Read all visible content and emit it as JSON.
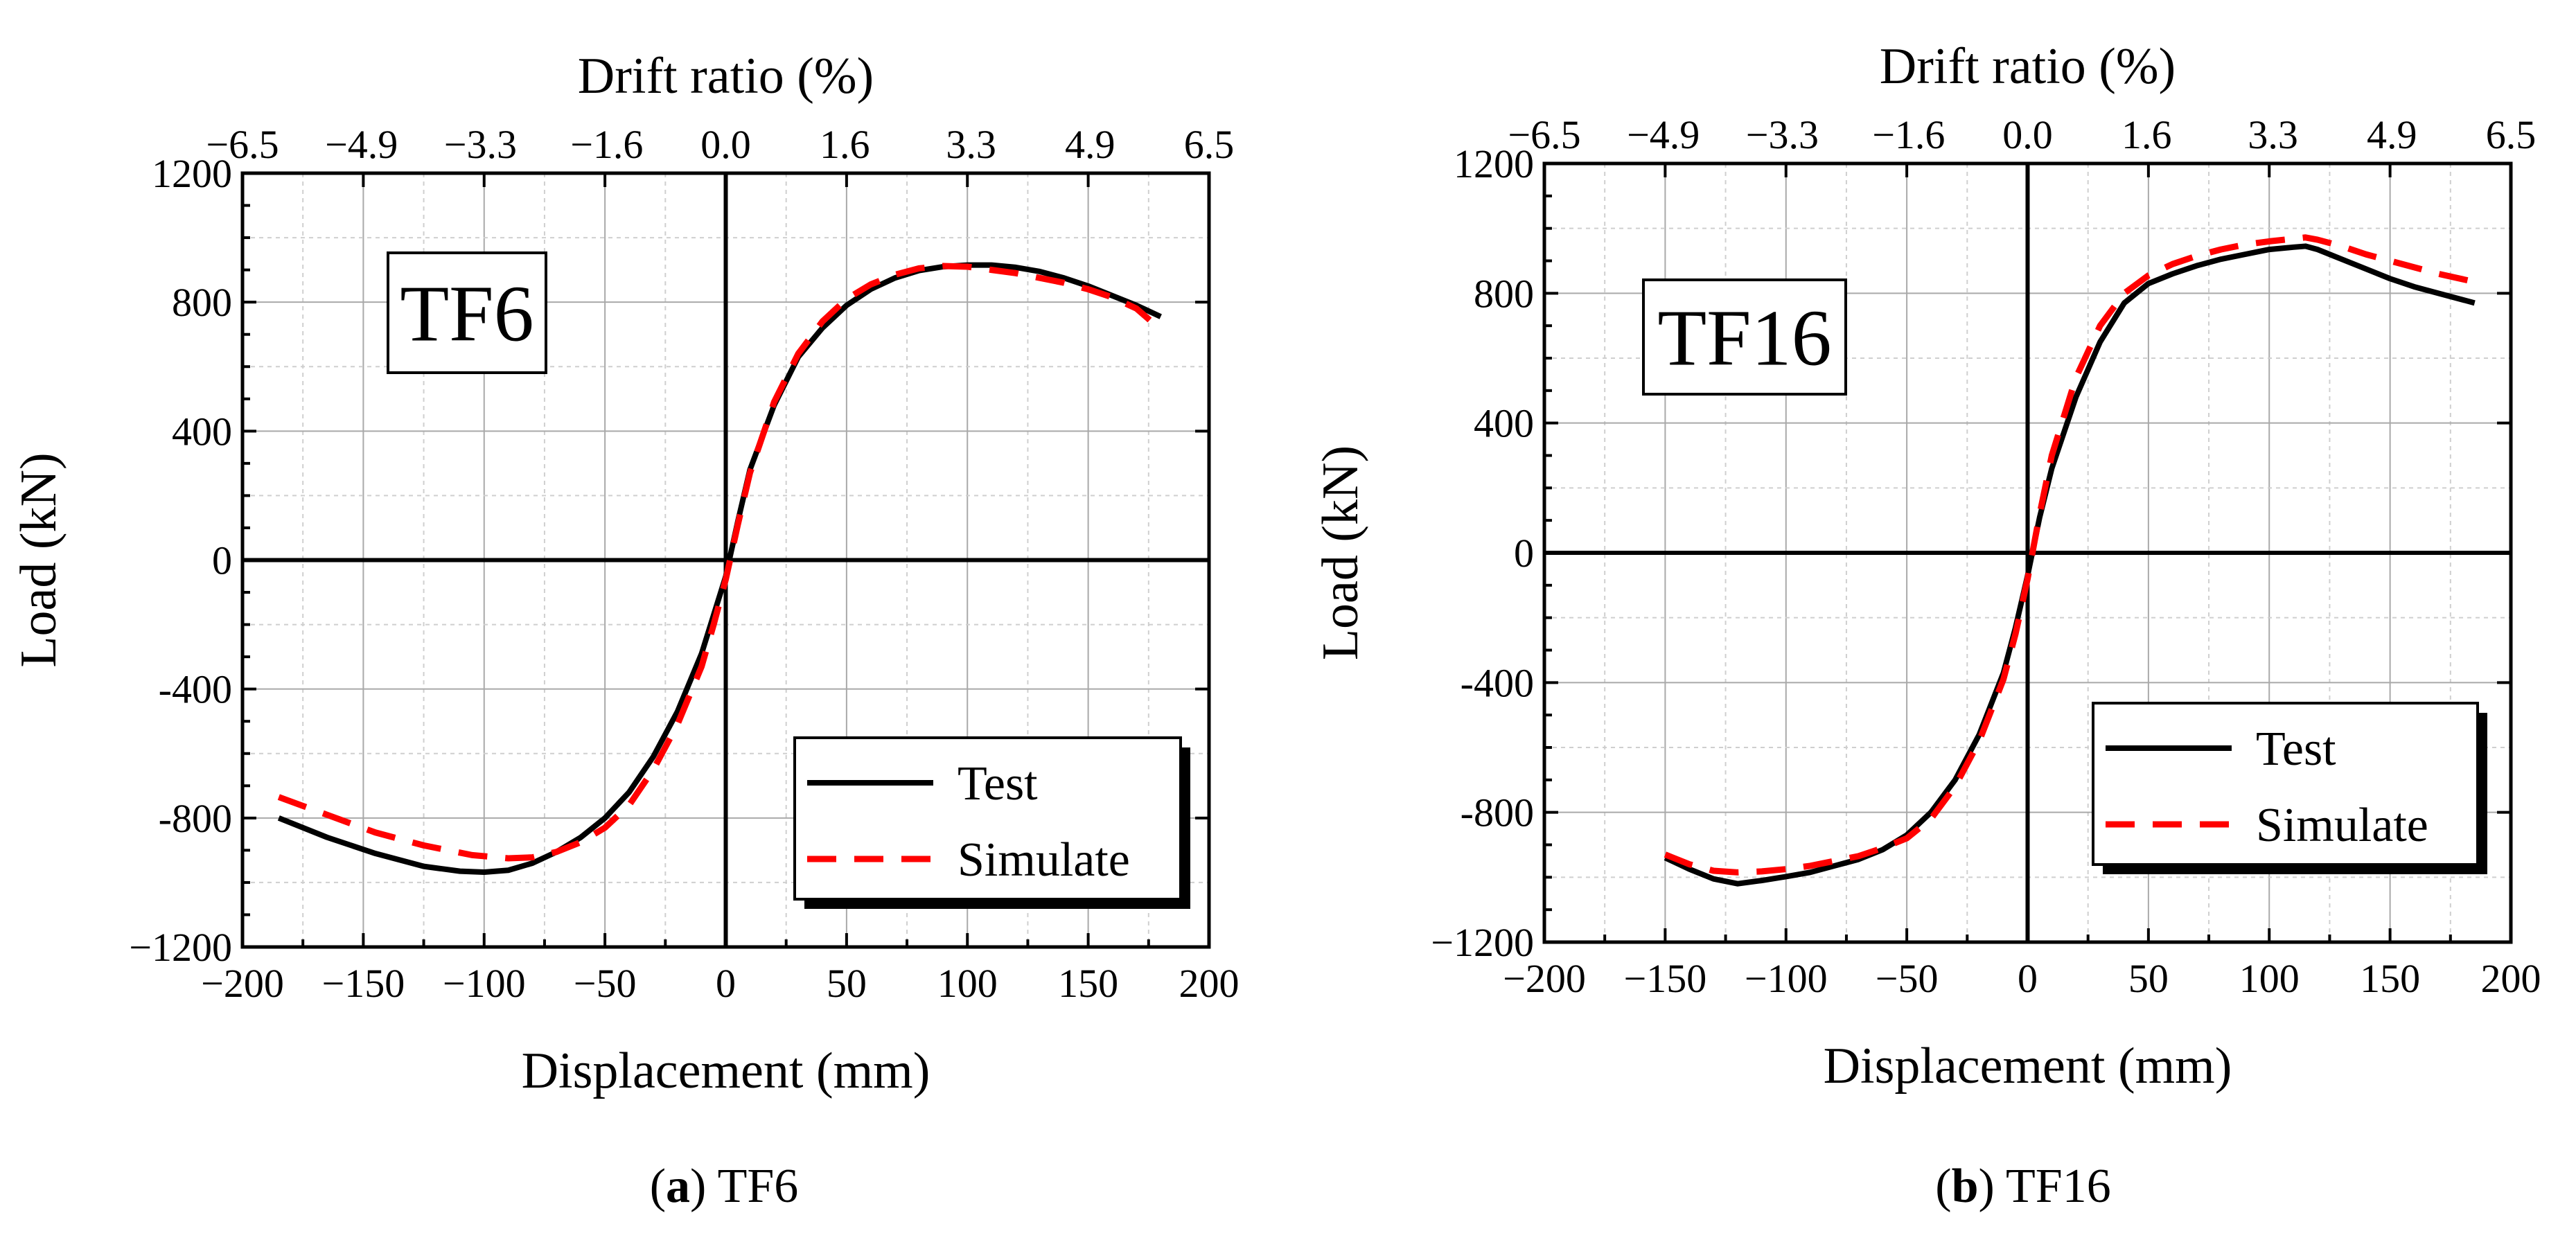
{
  "chart_data": [
    {
      "type": "line",
      "panel_label": "a",
      "caption_text": "TF6",
      "tag": "TF6",
      "xlabel": "Displacement (mm)",
      "ylabel": "Load (kN)",
      "top_xlabel": "Drift ratio (%)",
      "xlim": [
        -200,
        200
      ],
      "ylim": [
        -1200,
        1200
      ],
      "x_ticks": [
        -200,
        -150,
        -100,
        -50,
        0,
        50,
        100,
        150,
        200
      ],
      "x_tick_labels": [
        "−200",
        "−150",
        "−100",
        "−50",
        "0",
        "50",
        "100",
        "150",
        "200"
      ],
      "y_ticks": [
        -1200,
        -800,
        -400,
        0,
        400,
        800,
        1200
      ],
      "y_tick_labels": [
        "−1200",
        "-800",
        "-400",
        "0",
        "400",
        "800",
        "1200"
      ],
      "top_ticks": [
        -6.5,
        -4.9,
        -3.3,
        -1.6,
        0.0,
        1.6,
        3.3,
        4.9,
        6.5
      ],
      "top_tick_labels": [
        "−6.5",
        "−4.9",
        "−3.3",
        "−1.6",
        "0.0",
        "1.6",
        "3.3",
        "4.9",
        "6.5"
      ],
      "grid": true,
      "legend_position": "bottom-right",
      "series": [
        {
          "name": "Test",
          "color": "#000000",
          "dash": "solid",
          "x": [
            -185,
            -165,
            -145,
            -125,
            -110,
            -100,
            -90,
            -80,
            -70,
            -60,
            -50,
            -40,
            -30,
            -20,
            -10,
            -5,
            0,
            5,
            10,
            20,
            30,
            40,
            50,
            60,
            70,
            80,
            90,
            100,
            110,
            120,
            130,
            140,
            150,
            160,
            170,
            180
          ],
          "y": [
            -800,
            -860,
            -910,
            -950,
            -965,
            -968,
            -962,
            -940,
            -905,
            -860,
            -800,
            -720,
            -610,
            -470,
            -290,
            -170,
            -50,
            120,
            280,
            480,
            630,
            720,
            790,
            840,
            875,
            898,
            910,
            915,
            915,
            908,
            895,
            875,
            850,
            820,
            790,
            755
          ]
        },
        {
          "name": "Simulate",
          "color": "#ff0000",
          "dash": "dashed",
          "x": [
            -185,
            -165,
            -145,
            -125,
            -105,
            -90,
            -80,
            -70,
            -60,
            -50,
            -40,
            -30,
            -20,
            -10,
            -5,
            0,
            5,
            10,
            20,
            30,
            40,
            50,
            60,
            70,
            80,
            90,
            100,
            110,
            120,
            130,
            140,
            150,
            160,
            170,
            180
          ],
          "y": [
            -735,
            -790,
            -845,
            -885,
            -915,
            -925,
            -922,
            -905,
            -875,
            -830,
            -760,
            -650,
            -510,
            -330,
            -200,
            -60,
            110,
            270,
            490,
            640,
            740,
            810,
            855,
            885,
            905,
            912,
            910,
            900,
            890,
            875,
            860,
            840,
            815,
            780,
            715
          ]
        }
      ]
    },
    {
      "type": "line",
      "panel_label": "b",
      "caption_text": "TF16",
      "tag": "TF16",
      "xlabel": "Displacement (mm)",
      "ylabel": "Load (kN)",
      "top_xlabel": "Drift ratio (%)",
      "xlim": [
        -200,
        200
      ],
      "ylim": [
        -1200,
        1200
      ],
      "x_ticks": [
        -200,
        -150,
        -100,
        -50,
        0,
        50,
        100,
        150,
        200
      ],
      "x_tick_labels": [
        "−200",
        "−150",
        "−100",
        "−50",
        "0",
        "50",
        "100",
        "150",
        "200"
      ],
      "y_ticks": [
        -1200,
        -800,
        -400,
        0,
        400,
        800,
        1200
      ],
      "y_tick_labels": [
        "−1200",
        "-800",
        "-400",
        "0",
        "400",
        "800",
        "1200"
      ],
      "top_ticks": [
        -6.5,
        -4.9,
        -3.3,
        -1.6,
        0.0,
        1.6,
        3.3,
        4.9,
        6.5
      ],
      "top_tick_labels": [
        "−6.5",
        "−4.9",
        "−3.3",
        "−1.6",
        "0.0",
        "1.6",
        "3.3",
        "4.9",
        "6.5"
      ],
      "grid": true,
      "legend_position": "bottom-right",
      "series": [
        {
          "name": "Test",
          "color": "#000000",
          "dash": "solid",
          "x": [
            -150,
            -140,
            -130,
            -120,
            -110,
            -100,
            -90,
            -80,
            -70,
            -60,
            -50,
            -40,
            -30,
            -20,
            -10,
            -5,
            0,
            5,
            10,
            20,
            30,
            40,
            50,
            60,
            70,
            80,
            90,
            100,
            110,
            115,
            120,
            130,
            140,
            150,
            160,
            170,
            185
          ],
          "y": [
            -940,
            -975,
            -1005,
            -1020,
            -1010,
            -998,
            -985,
            -965,
            -945,
            -915,
            -870,
            -800,
            -700,
            -560,
            -370,
            -230,
            -70,
            110,
            260,
            480,
            650,
            770,
            830,
            860,
            885,
            905,
            920,
            935,
            942,
            945,
            935,
            905,
            875,
            845,
            820,
            800,
            770
          ]
        },
        {
          "name": "Simulate",
          "color": "#ff0000",
          "dash": "dashed",
          "x": [
            -150,
            -140,
            -130,
            -120,
            -110,
            -100,
            -90,
            -80,
            -70,
            -60,
            -50,
            -40,
            -30,
            -20,
            -10,
            -5,
            0,
            5,
            10,
            20,
            30,
            40,
            50,
            60,
            70,
            80,
            90,
            100,
            110,
            115,
            120,
            130,
            140,
            150,
            160,
            170,
            185
          ],
          "y": [
            -930,
            -960,
            -980,
            -985,
            -982,
            -975,
            -965,
            -950,
            -935,
            -910,
            -880,
            -820,
            -720,
            -580,
            -390,
            -250,
            -80,
            120,
            300,
            540,
            700,
            800,
            855,
            890,
            915,
            935,
            950,
            960,
            968,
            972,
            965,
            945,
            920,
            900,
            880,
            860,
            835
          ]
        }
      ]
    }
  ]
}
